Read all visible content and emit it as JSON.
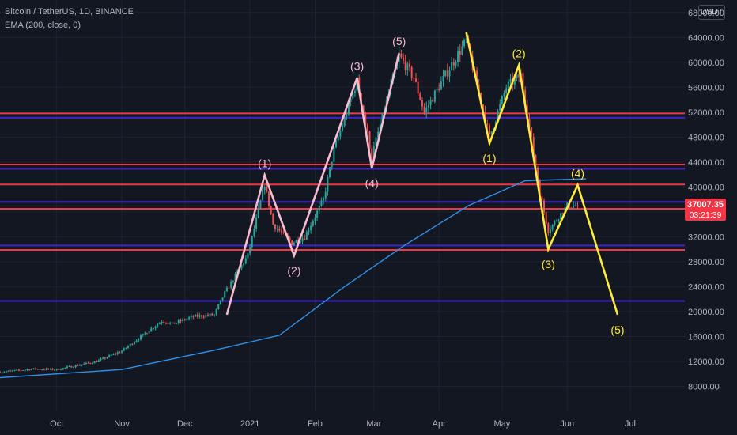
{
  "header": {
    "symbol_line": "Bitcoin / TetherUS, 1D, BINANCE",
    "indicator_line": "EMA (200, close, 0)"
  },
  "currency_button": "USDT",
  "price_label": {
    "price": "37007.35",
    "countdown": "03:21:39"
  },
  "colors": {
    "background": "#131722",
    "grid": "#1f2330",
    "axis_text": "#b2b5be",
    "candle_up": "#26a69a",
    "candle_down": "#ef5350",
    "ema": "#2f8fe6",
    "resistance_red": "#f23645",
    "support_blue": "#3d24c9",
    "wave_pink": "#f8bbd0",
    "wave_yellow": "#ffeb3b",
    "price_tag": "#f23645"
  },
  "chart_data": {
    "type": "candlestick",
    "symbol": "BTCUSDT",
    "interval": "1D",
    "exchange": "BINANCE",
    "x_range": [
      "2020-09-04",
      "2021-07-27"
    ],
    "y_range": [
      4000,
      70000
    ],
    "y_ticks": [
      8000,
      12000,
      16000,
      20000,
      24000,
      28000,
      32000,
      36000,
      40000,
      44000,
      48000,
      52000,
      56000,
      60000,
      64000,
      68000
    ],
    "y_tick_labels": [
      "8000.00",
      "12000.00",
      "16000.00",
      "20000.00",
      "24000.00",
      "28000.00",
      "32000.00",
      "36000.00",
      "40000.00",
      "44000.00",
      "48000.00",
      "52000.00",
      "56000.00",
      "60000.00",
      "64000.00",
      "68000.00"
    ],
    "x_ticks": [
      {
        "date": "2020-10-01",
        "label": "Oct"
      },
      {
        "date": "2020-11-01",
        "label": "Nov"
      },
      {
        "date": "2020-12-01",
        "label": "Dec"
      },
      {
        "date": "2021-01-01",
        "label": "2021"
      },
      {
        "date": "2021-02-01",
        "label": "Feb"
      },
      {
        "date": "2021-03-01",
        "label": "Mar"
      },
      {
        "date": "2021-04-01",
        "label": "Apr"
      },
      {
        "date": "2021-05-01",
        "label": "May"
      },
      {
        "date": "2021-06-01",
        "label": "Jun"
      },
      {
        "date": "2021-07-01",
        "label": "Jul"
      }
    ],
    "price_anchors": [
      [
        "2020-09-04",
        10300
      ],
      [
        "2020-09-20",
        10800
      ],
      [
        "2020-10-01",
        10700
      ],
      [
        "2020-10-20",
        12000
      ],
      [
        "2020-11-01",
        13700
      ],
      [
        "2020-11-20",
        18500
      ],
      [
        "2020-11-25",
        18000
      ],
      [
        "2020-12-05",
        19200
      ],
      [
        "2020-12-15",
        19500
      ],
      [
        "2020-12-20",
        23000
      ],
      [
        "2020-12-31",
        29000
      ],
      [
        "2021-01-08",
        40500
      ],
      [
        "2021-01-12",
        34000
      ],
      [
        "2021-01-21",
        31000
      ],
      [
        "2021-01-27",
        32000
      ],
      [
        "2021-02-05",
        38000
      ],
      [
        "2021-02-10",
        46000
      ],
      [
        "2021-02-21",
        57000
      ],
      [
        "2021-02-28",
        45000
      ],
      [
        "2021-03-13",
        61000
      ],
      [
        "2021-03-20",
        57500
      ],
      [
        "2021-03-25",
        52000
      ],
      [
        "2021-04-05",
        58500
      ],
      [
        "2021-04-14",
        63500
      ],
      [
        "2021-04-25",
        48000
      ],
      [
        "2021-05-03",
        56000
      ],
      [
        "2021-05-10",
        58000
      ],
      [
        "2021-05-19",
        39000
      ],
      [
        "2021-05-23",
        33000
      ],
      [
        "2021-06-01",
        37000
      ],
      [
        "2021-06-06",
        37007
      ]
    ],
    "ema_200": [
      [
        "2020-09-04",
        9400
      ],
      [
        "2020-11-01",
        10700
      ],
      [
        "2020-12-15",
        13800
      ],
      [
        "2021-01-15",
        16200
      ],
      [
        "2021-02-15",
        24000
      ],
      [
        "2021-03-15",
        30500
      ],
      [
        "2021-04-15",
        37000
      ],
      [
        "2021-05-12",
        41000
      ],
      [
        "2021-06-10",
        41300
      ]
    ],
    "horizontal_levels": [
      {
        "price": 51800,
        "color": "red"
      },
      {
        "price": 51100,
        "color": "blue"
      },
      {
        "price": 43600,
        "color": "red"
      },
      {
        "price": 42900,
        "color": "blue"
      },
      {
        "price": 40400,
        "color": "red"
      },
      {
        "price": 37600,
        "color": "blue"
      },
      {
        "price": 36500,
        "color": "red"
      },
      {
        "price": 30600,
        "color": "blue"
      },
      {
        "price": 29900,
        "color": "red"
      },
      {
        "price": 21700,
        "color": "blue"
      }
    ],
    "wave_pink": [
      {
        "date": "2020-12-21",
        "price": 19500,
        "label": ""
      },
      {
        "date": "2021-01-08",
        "price": 41900,
        "label": "(1)"
      },
      {
        "date": "2021-01-22",
        "price": 29000,
        "label": "(2)"
      },
      {
        "date": "2021-02-21",
        "price": 57500,
        "label": "(3)"
      },
      {
        "date": "2021-02-28",
        "price": 43000,
        "label": "(4)"
      },
      {
        "date": "2021-03-13",
        "price": 61500,
        "label": "(5)"
      }
    ],
    "wave_yellow": [
      {
        "date": "2021-04-14",
        "price": 64800,
        "label": ""
      },
      {
        "date": "2021-04-25",
        "price": 47000,
        "label": "(1)"
      },
      {
        "date": "2021-05-09",
        "price": 59500,
        "label": "(2)"
      },
      {
        "date": "2021-05-23",
        "price": 30000,
        "label": "(3)"
      },
      {
        "date": "2021-06-06",
        "price": 40300,
        "label": "(4)"
      },
      {
        "date": "2021-06-25",
        "price": 19500,
        "label": "(5)"
      }
    ]
  }
}
